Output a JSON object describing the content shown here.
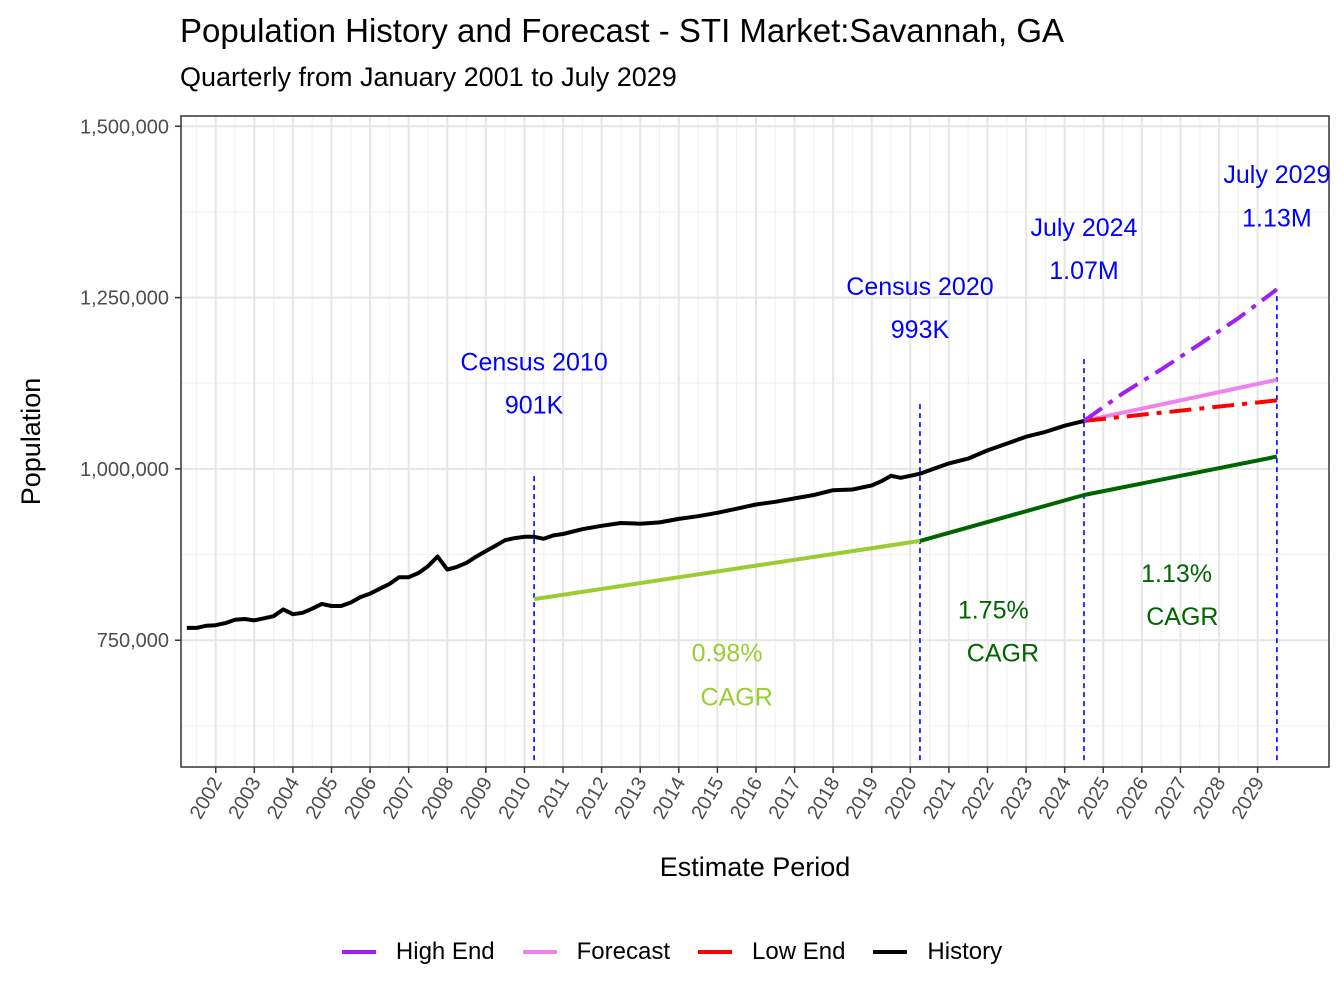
{
  "header": {
    "title": "Population History and Forecast - STI Market:Savannah, GA",
    "subtitle": "Quarterly from January 2001 to July 2029"
  },
  "chart_data": {
    "type": "line",
    "title": "Population History and Forecast - STI Market:Savannah, GA",
    "subtitle": "Quarterly from January 2001 to July 2029",
    "xlabel": "Estimate Period",
    "ylabel": "Population",
    "xlim": [
      2001.1,
      2030.85
    ],
    "ylim": [
      565000,
      1515000
    ],
    "x_ticks": [
      2002,
      2003,
      2004,
      2005,
      2006,
      2007,
      2008,
      2009,
      2010,
      2011,
      2012,
      2013,
      2014,
      2015,
      2016,
      2017,
      2018,
      2019,
      2020,
      2021,
      2022,
      2023,
      2024,
      2025,
      2026,
      2027,
      2028,
      2029
    ],
    "y_ticks": [
      750000,
      1000000,
      1250000,
      1500000
    ],
    "y_tick_labels": [
      "750,000",
      "1,000,000",
      "1,250,000",
      "1,500,000"
    ],
    "grid": true,
    "legend_position": "bottom",
    "series": [
      {
        "name": "History",
        "color": "#000000",
        "style": "solid",
        "x": [
          2001.25,
          2001.5,
          2001.75,
          2002.0,
          2002.25,
          2002.5,
          2002.75,
          2003.0,
          2003.25,
          2003.5,
          2003.75,
          2004.0,
          2004.25,
          2004.5,
          2004.75,
          2005.0,
          2005.25,
          2005.5,
          2005.75,
          2006.0,
          2006.25,
          2006.5,
          2006.75,
          2007.0,
          2007.25,
          2007.5,
          2007.75,
          2008.0,
          2008.25,
          2008.5,
          2008.75,
          2009.0,
          2009.25,
          2009.5,
          2009.75,
          2010.0,
          2010.25,
          2010.5,
          2010.75,
          2011.0,
          2011.5,
          2012.0,
          2012.5,
          2013.0,
          2013.5,
          2014.0,
          2014.5,
          2015.0,
          2015.5,
          2016.0,
          2016.5,
          2017.0,
          2017.5,
          2018.0,
          2018.5,
          2019.0,
          2019.25,
          2019.5,
          2019.75,
          2020.0,
          2020.25,
          2020.5,
          2021.0,
          2021.5,
          2022.0,
          2022.5,
          2023.0,
          2023.5,
          2024.0,
          2024.5
        ],
        "values": [
          768000,
          768000,
          771000,
          772000,
          775000,
          780000,
          781000,
          779000,
          782000,
          785000,
          795000,
          788000,
          790000,
          796000,
          803000,
          800000,
          800000,
          805000,
          813000,
          818000,
          825000,
          832000,
          842000,
          842000,
          848000,
          858000,
          872000,
          853000,
          857000,
          863000,
          872000,
          880000,
          888000,
          896000,
          899000,
          901000,
          901000,
          898000,
          903000,
          905000,
          912000,
          917000,
          921000,
          920000,
          922000,
          927000,
          931000,
          936000,
          942000,
          948000,
          952000,
          957000,
          962000,
          969000,
          970000,
          976000,
          982000,
          990000,
          987000,
          990000,
          993000,
          998000,
          1008000,
          1015000,
          1027000,
          1037000,
          1047000,
          1054000,
          1063000,
          1070000
        ]
      },
      {
        "name": "Forecast",
        "color": "#ee82ee",
        "style": "solid",
        "x": [
          2024.5,
          2025.5,
          2026.5,
          2027.5,
          2028.5,
          2029.5
        ],
        "values": [
          1070000,
          1082000,
          1094000,
          1106000,
          1118000,
          1130000
        ]
      },
      {
        "name": "Low End",
        "color": "#ff0000",
        "style": "dashdot",
        "x": [
          2024.5,
          2025.5,
          2026.5,
          2027.5,
          2028.5,
          2029.5
        ],
        "values": [
          1070000,
          1076000,
          1082000,
          1088000,
          1094000,
          1100000
        ]
      },
      {
        "name": "High End",
        "color": "#a020f0",
        "style": "dashdot",
        "x": [
          2024.5,
          2025.5,
          2026.5,
          2027.5,
          2028.5,
          2029.5
        ],
        "values": [
          1070000,
          1110000,
          1145000,
          1182000,
          1220000,
          1262000
        ]
      },
      {
        "name": "CAGR 2010-2020",
        "color": "#9acd32",
        "style": "solid",
        "in_legend": false,
        "x": [
          2010.25,
          2020.25
        ],
        "values": [
          810000,
          895000
        ]
      },
      {
        "name": "CAGR 2020-2029",
        "color": "#006400",
        "style": "solid",
        "in_legend": false,
        "x": [
          2020.25,
          2024.5,
          2029.5
        ],
        "values": [
          895000,
          962000,
          1018000
        ]
      }
    ],
    "reference_lines": [
      {
        "x": 2010.25,
        "y_from": 575000,
        "y_to": 995000,
        "color": "#0000ff",
        "style": "dashed"
      },
      {
        "x": 2020.25,
        "y_from": 575000,
        "y_to": 1095000,
        "color": "#0000ff",
        "style": "dashed"
      },
      {
        "x": 2024.5,
        "y_from": 575000,
        "y_to": 1165000,
        "color": "#0000ff",
        "style": "dashed"
      },
      {
        "x": 2029.5,
        "y_from": 575000,
        "y_to": 1255000,
        "color": "#0000ff",
        "style": "dashed"
      }
    ],
    "annotations": [
      {
        "text": "Census 2010",
        "x": 2010.25,
        "y": 1157000,
        "color": "#0000ff"
      },
      {
        "text": "901K",
        "x": 2010.25,
        "y": 1094000,
        "color": "#0000ff"
      },
      {
        "text": "Census 2020",
        "x": 2020.25,
        "y": 1267000,
        "color": "#0000ff"
      },
      {
        "text": "993K",
        "x": 2020.25,
        "y": 1204000,
        "color": "#0000ff"
      },
      {
        "text": "July 2024",
        "x": 2024.5,
        "y": 1353000,
        "color": "#0000ff"
      },
      {
        "text": "1.07M",
        "x": 2024.5,
        "y": 1290000,
        "color": "#0000ff"
      },
      {
        "text": "July 2029",
        "x": 2029.5,
        "y": 1430000,
        "color": "#0000ff"
      },
      {
        "text": "1.13M",
        "x": 2029.5,
        "y": 1367000,
        "color": "#0000ff"
      },
      {
        "text": "0.98%",
        "x": 2015.25,
        "y": 732000,
        "color": "#9acd32"
      },
      {
        "text": "CAGR",
        "x": 2015.5,
        "y": 668000,
        "color": "#9acd32"
      },
      {
        "text": "1.75%",
        "x": 2022.15,
        "y": 795000,
        "color": "#006400"
      },
      {
        "text": "CAGR",
        "x": 2022.4,
        "y": 732000,
        "color": "#006400"
      },
      {
        "text": "1.13%",
        "x": 2026.9,
        "y": 848000,
        "color": "#006400"
      },
      {
        "text": "CAGR",
        "x": 2027.05,
        "y": 785000,
        "color": "#006400"
      }
    ],
    "legend": [
      {
        "label": "High End",
        "color": "#a020f0"
      },
      {
        "label": "Forecast",
        "color": "#ee82ee"
      },
      {
        "label": "Low End",
        "color": "#ff0000"
      },
      {
        "label": "History",
        "color": "#000000"
      }
    ]
  }
}
